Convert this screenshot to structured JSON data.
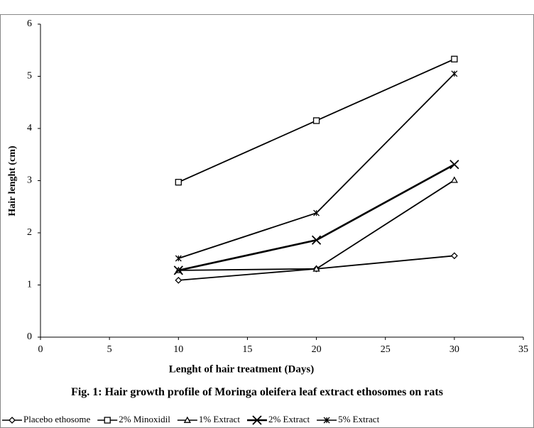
{
  "chart_data": {
    "type": "line",
    "title": "Fig. 1: Hair growth profile of Moringa oleifera leaf extract ethosomes on rats",
    "x_label": "Lenght of hair treatment (Days)",
    "y_label": "Hair lenght (cm)",
    "x": [
      10,
      20,
      30
    ],
    "xlim": [
      0,
      35
    ],
    "xticks": [
      0,
      5,
      10,
      15,
      20,
      25,
      30,
      35
    ],
    "ylim": [
      0,
      6
    ],
    "yticks": [
      0,
      1,
      2,
      3,
      4,
      5,
      6
    ],
    "legend": "bottom",
    "series": [
      {
        "name": "Placebo ethosome",
        "color": "#000000",
        "marker": "diamond",
        "values": [
          1.09,
          1.31,
          1.56
        ]
      },
      {
        "name": "2% Minoxidil",
        "color": "#000000",
        "marker": "square",
        "values": [
          2.97,
          4.15,
          5.33
        ]
      },
      {
        "name": "1% Extract",
        "color": "#000000",
        "marker": "triangle",
        "values": [
          1.28,
          1.31,
          3.01
        ]
      },
      {
        "name": "2% Extract",
        "color": "#000000",
        "marker": "x",
        "values": [
          1.28,
          1.86,
          3.31
        ]
      },
      {
        "name": "5% Extract",
        "color": "#000000",
        "marker": "star",
        "values": [
          1.51,
          2.38,
          5.05
        ]
      }
    ]
  }
}
